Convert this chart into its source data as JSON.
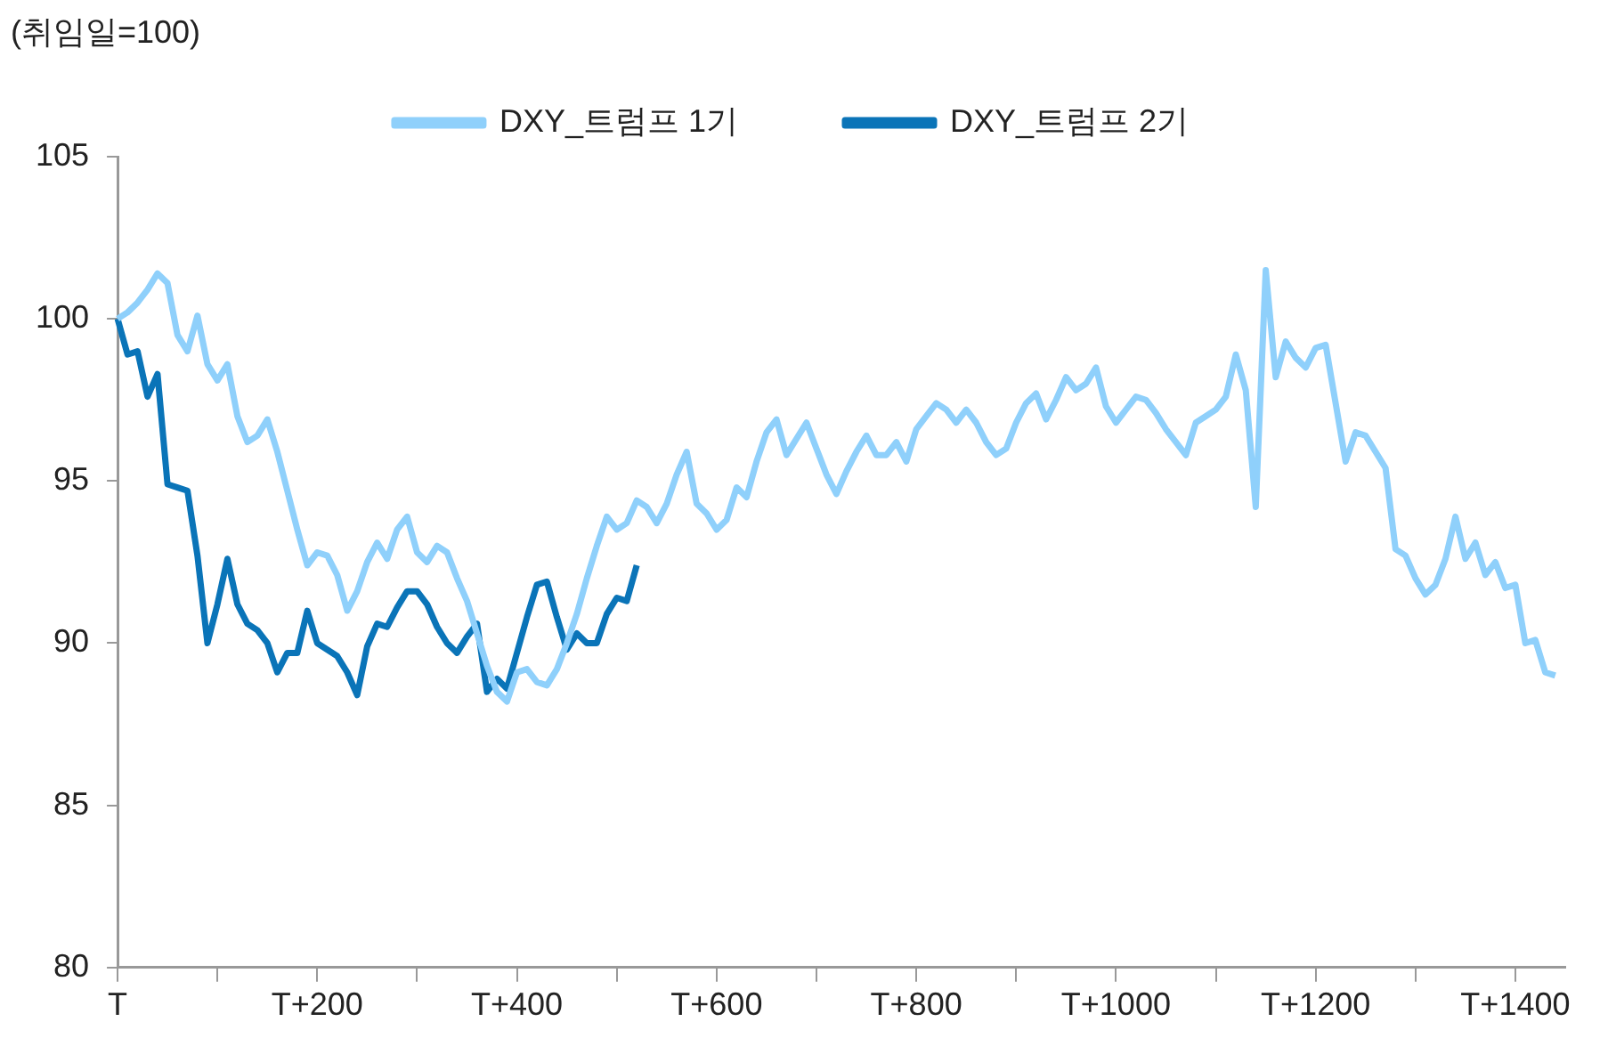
{
  "chart_data": {
    "type": "line",
    "ylabel": "(취임일=100)",
    "ylim": [
      80,
      105
    ],
    "categories": [
      "T",
      null,
      null,
      null,
      null,
      null,
      null,
      null,
      null,
      null,
      null,
      null,
      null,
      null,
      null,
      null,
      null,
      null,
      null,
      null,
      "T+200",
      null,
      null,
      null,
      null,
      null,
      null,
      null,
      null,
      null,
      null,
      null,
      null,
      null,
      null,
      null,
      null,
      null,
      null,
      null,
      "T+400",
      null,
      null,
      null,
      null,
      null,
      null,
      null,
      null,
      null,
      null,
      null,
      null,
      null,
      null,
      null,
      null,
      null,
      null,
      null,
      "T+600",
      null,
      null,
      null,
      null,
      null,
      null,
      null,
      null,
      null,
      null,
      null,
      null,
      null,
      null,
      null,
      null,
      null,
      null,
      null,
      "T+800",
      null,
      null,
      null,
      null,
      null,
      null,
      null,
      null,
      null,
      null,
      null,
      null,
      null,
      null,
      null,
      null,
      null,
      null,
      null,
      "T+1000",
      null,
      null,
      null,
      null,
      null,
      null,
      null,
      null,
      null,
      null,
      null,
      null,
      null,
      null,
      null,
      null,
      null,
      null,
      null,
      "T+1200",
      null,
      null,
      null,
      null,
      null,
      null,
      null,
      null,
      null,
      null,
      null,
      null,
      null,
      null,
      null,
      null,
      null,
      null,
      null,
      "T+1400",
      null,
      null,
      null,
      null,
      null
    ],
    "yticks": [
      80,
      85,
      90,
      95,
      100,
      105
    ],
    "grid": false,
    "legend": "top",
    "marker": "none",
    "line_style": "solid",
    "series": [
      {
        "name": "DXY_트럼프 1기",
        "color": "#8fd0fb",
        "values": [
          100,
          100.2,
          100.5,
          100.9,
          101.4,
          101.1,
          99.5,
          99.0,
          100.1,
          98.6,
          98.1,
          98.6,
          97.0,
          96.2,
          96.4,
          96.9,
          95.9,
          94.7,
          93.5,
          92.4,
          92.8,
          92.7,
          92.1,
          91.0,
          91.6,
          92.5,
          93.1,
          92.6,
          93.5,
          93.9,
          92.8,
          92.5,
          93.0,
          92.8,
          92.0,
          91.3,
          90.3,
          89.3,
          88.5,
          88.2,
          89.1,
          89.2,
          88.8,
          88.7,
          89.2,
          90.0,
          90.9,
          92.0,
          93.0,
          93.9,
          93.5,
          93.7,
          94.4,
          94.2,
          93.7,
          94.3,
          95.2,
          95.9,
          94.3,
          94.0,
          93.5,
          93.8,
          94.8,
          94.5,
          95.6,
          96.5,
          96.9,
          95.8,
          96.3,
          96.8,
          96.0,
          95.2,
          94.6,
          95.3,
          95.9,
          96.4,
          95.8,
          95.8,
          96.2,
          95.6,
          96.6,
          97.0,
          97.4,
          97.2,
          96.8,
          97.2,
          96.8,
          96.2,
          95.8,
          96.0,
          96.8,
          97.4,
          97.7,
          96.9,
          97.5,
          98.2,
          97.8,
          98.0,
          98.5,
          97.3,
          96.8,
          97.2,
          97.6,
          97.5,
          97.1,
          96.6,
          96.2,
          95.8,
          96.8,
          97.0,
          97.2,
          97.6,
          98.9,
          97.8,
          94.2,
          101.5,
          98.2,
          99.3,
          98.8,
          98.5,
          99.1,
          99.2,
          97.4,
          95.6,
          96.5,
          96.4,
          95.9,
          95.4,
          92.9,
          92.7,
          92.0,
          91.5,
          91.8,
          92.6,
          93.9,
          92.6,
          93.1,
          92.1,
          92.5,
          91.7,
          91.8,
          90.0,
          90.1,
          89.1,
          89.0,
          null
        ]
      },
      {
        "name": "DXY_트럼프 2기",
        "color": "#0a74b8",
        "values": [
          100,
          98.9,
          99.0,
          97.6,
          98.3,
          94.9,
          94.8,
          94.7,
          92.7,
          90.0,
          91.2,
          92.6,
          91.2,
          90.6,
          90.4,
          90.0,
          89.1,
          89.7,
          89.7,
          91.0,
          90.0,
          89.8,
          89.6,
          89.1,
          88.4,
          89.9,
          90.6,
          90.5,
          91.1,
          91.6,
          91.6,
          91.2,
          90.5,
          90.0,
          89.7,
          90.2,
          90.6,
          88.5,
          88.9,
          88.6,
          89.7,
          90.8,
          91.8,
          91.9,
          90.8,
          89.8,
          90.3,
          90.0,
          90.0,
          90.9,
          91.4,
          91.3,
          92.4,
          null,
          null,
          null,
          null,
          null,
          null,
          null,
          null,
          null,
          null,
          null,
          null,
          null,
          null,
          null,
          null,
          null,
          null,
          null,
          null,
          null,
          null,
          null,
          null,
          null,
          null,
          null,
          null,
          null,
          null,
          null,
          null,
          null,
          null,
          null,
          null,
          null,
          null,
          null,
          null,
          null,
          null,
          null,
          null,
          null,
          null,
          null,
          null,
          null,
          null,
          null,
          null,
          null,
          null,
          null,
          null,
          null,
          null,
          null,
          null,
          null,
          null,
          null,
          null,
          null,
          null,
          null,
          null,
          null,
          null,
          null,
          null,
          null,
          null,
          null,
          null,
          null,
          null,
          null,
          null,
          null,
          null,
          null,
          null,
          null,
          null,
          null,
          null,
          null,
          null,
          null,
          null,
          null
        ]
      }
    ]
  }
}
